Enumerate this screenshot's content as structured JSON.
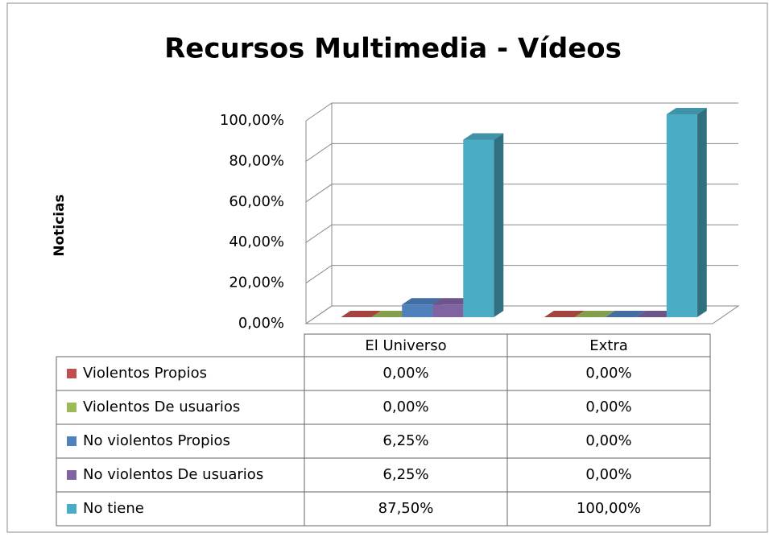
{
  "chart_data": {
    "type": "bar",
    "title": "Recursos Multimedia - Vídeos",
    "y_label": "Noticias",
    "categories": [
      "El Universo",
      "Extra"
    ],
    "series": [
      {
        "name": "Violentos Propios",
        "color": "#c0504d",
        "values": [
          0,
          0
        ],
        "value_labels": [
          "0,00%",
          "0,00%"
        ]
      },
      {
        "name": "Violentos De usuarios",
        "color": "#9bbb59",
        "values": [
          0,
          0
        ],
        "value_labels": [
          "0,00%",
          "0,00%"
        ]
      },
      {
        "name": "No violentos Propios",
        "color": "#4f81bd",
        "values": [
          6.25,
          0
        ],
        "value_labels": [
          "6,25%",
          "0,00%"
        ]
      },
      {
        "name": "No violentos De usuarios",
        "color": "#8064a2",
        "values": [
          6.25,
          0
        ],
        "value_labels": [
          "6,25%",
          "0,00%"
        ]
      },
      {
        "name": "No tiene",
        "color": "#4bacc6",
        "values": [
          87.5,
          100
        ],
        "value_labels": [
          "87,50%",
          "100,00%"
        ]
      }
    ],
    "ylim": [
      0,
      100
    ],
    "yticks": [
      {
        "value": 0,
        "label": "0,00%"
      },
      {
        "value": 20,
        "label": "20,00%"
      },
      {
        "value": 40,
        "label": "40,00%"
      },
      {
        "value": 60,
        "label": "60,00%"
      },
      {
        "value": 80,
        "label": "80,00%"
      },
      {
        "value": 100,
        "label": "100,00%"
      }
    ],
    "grid": true
  }
}
